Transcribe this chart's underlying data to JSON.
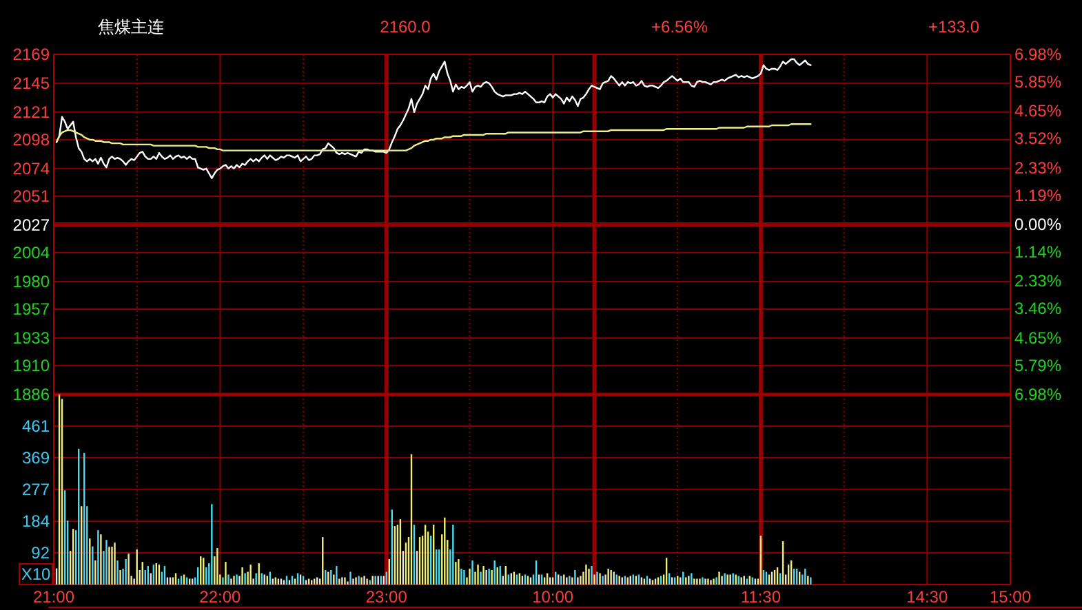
{
  "chart_data": [
    {
      "type": "line",
      "title": "焦煤主连",
      "annotations": [
        "2160.0",
        "+6.56%",
        "+133.0"
      ],
      "categories": [
        null,
        null,
        null,
        null,
        null,
        null,
        null,
        null,
        null,
        null,
        null,
        null,
        null,
        null,
        null,
        null,
        null,
        null,
        null,
        null,
        null,
        null,
        null,
        null,
        null,
        null,
        null,
        null,
        null,
        null,
        null,
        null,
        null,
        null,
        null,
        null,
        null,
        null,
        null,
        null,
        null,
        null,
        null,
        null,
        null,
        null,
        null,
        null,
        null,
        null,
        null,
        null,
        null,
        null,
        null,
        null,
        null,
        null,
        null,
        null,
        null,
        null,
        null,
        null,
        null,
        null,
        null,
        null,
        null,
        null,
        null,
        null,
        null,
        null,
        null,
        null,
        null,
        null,
        null,
        null,
        null,
        null,
        null,
        null,
        null,
        null,
        null,
        null,
        null,
        null,
        null,
        null,
        null,
        null,
        null,
        null,
        null,
        null,
        null,
        null,
        null,
        null,
        null,
        null,
        null,
        null,
        null,
        null,
        null,
        null,
        null,
        null,
        null,
        null,
        null,
        null,
        null,
        null,
        null,
        null,
        null,
        null,
        null,
        null,
        null,
        null,
        null,
        null,
        null,
        null,
        null,
        null,
        null,
        null,
        null,
        null,
        null,
        null,
        null,
        null,
        null,
        null,
        null,
        null,
        null,
        null,
        null,
        null,
        null,
        null,
        null,
        null,
        null,
        null,
        null,
        null,
        null,
        null,
        null,
        null,
        null,
        null,
        null,
        null,
        null,
        null,
        null,
        null,
        null,
        null,
        null,
        null,
        null,
        null,
        null,
        null,
        null,
        null,
        null,
        null,
        null,
        null,
        null,
        null,
        null,
        null,
        null,
        null,
        null,
        null,
        null,
        null,
        null,
        null,
        null,
        null,
        null,
        null,
        null,
        null,
        null,
        null,
        null,
        null,
        null,
        null,
        null,
        null,
        null,
        null,
        null,
        null,
        null,
        null,
        null,
        null,
        null,
        null,
        null,
        null,
        null,
        null,
        null,
        null,
        null,
        null,
        null,
        null,
        null,
        null,
        null,
        null,
        null,
        null,
        null,
        null,
        null,
        null,
        null,
        null,
        null,
        null,
        null,
        null,
        null,
        null,
        null,
        null,
        null,
        null,
        null,
        null,
        null,
        null,
        null,
        null,
        null,
        null,
        null,
        null,
        null,
        null,
        null,
        null,
        null,
        null,
        null,
        null,
        null,
        null,
        null,
        null,
        null,
        null,
        null,
        null,
        null,
        null,
        null,
        null,
        null,
        null,
        null,
        null,
        null,
        null,
        null,
        null,
        null,
        null,
        null,
        null,
        null,
        null,
        null,
        null,
        null,
        null,
        null,
        null,
        null,
        null,
        null,
        null,
        null,
        null,
        null,
        null,
        null,
        null,
        null,
        null,
        null,
        null,
        null,
        null,
        null,
        null,
        null,
        null,
        null,
        null,
        null,
        null,
        null,
        null,
        null,
        null,
        null,
        null,
        null,
        null,
        null,
        null,
        null,
        null,
        null,
        null,
        null,
        null,
        null,
        null,
        null,
        null,
        null,
        null
      ],
      "ylim": [
        1886,
        2169
      ],
      "yticks": [
        2169,
        2145,
        2121,
        2098,
        2074,
        2051,
        2027,
        2004,
        1980,
        1957,
        1933,
        1910,
        1886
      ],
      "y2lim": [
        -6.98,
        6.98
      ],
      "y2ticks": [
        {
          "value": 6.98,
          "label": "6.98%"
        },
        {
          "value": 5.85,
          "label": "5.85%"
        },
        {
          "value": 4.65,
          "label": "4.65%"
        },
        {
          "value": 3.52,
          "label": "3.52%"
        },
        {
          "value": 2.33,
          "label": "2.33%"
        },
        {
          "value": 1.19,
          "label": "1.19%"
        },
        {
          "value": 0,
          "label": "0.00%"
        },
        {
          "value": -1.14,
          "label": "1.14%"
        },
        {
          "value": -2.33,
          "label": "2.33%"
        },
        {
          "value": -3.46,
          "label": "3.46%"
        },
        {
          "value": -4.65,
          "label": "4.65%"
        },
        {
          "value": -5.79,
          "label": "5.79%"
        },
        {
          "value": -6.98,
          "label": "6.98%"
        }
      ],
      "series": [
        {
          "color": "#ffffff",
          "values": [
            null,
            2096,
            2101,
            2117,
            2113,
            2107,
            2110,
            2113,
            2100,
            2091,
            2088,
            2082,
            2080,
            2082,
            2080,
            2082,
            2078,
            2083,
            2078,
            2075,
            2082,
            2084,
            2082,
            2083,
            2082,
            2080,
            2077,
            2080,
            2082,
            2081,
            2084,
            2087,
            2088,
            2084,
            2082,
            2082,
            2084,
            2082,
            2087,
            2084,
            2082,
            2083,
            2085,
            2082,
            2084,
            2085,
            2083,
            2084,
            2082,
            2084,
            2082,
            2082,
            2075,
            2074,
            2073,
            2074,
            2070,
            2066,
            2070,
            2073,
            2074,
            2076,
            2077,
            2074,
            2076,
            2074,
            2077,
            2075,
            2078,
            2077,
            2080,
            2082,
            2080,
            2082,
            2080,
            2083,
            2085,
            2082,
            2085,
            2083,
            2081,
            2082,
            2084,
            2083,
            2085,
            2085,
            2084,
            2083,
            2085,
            2080,
            2082,
            2084,
            2081,
            2082,
            2085,
            2085,
            2086,
            2090,
            2091,
            2095,
            2093,
            2091,
            2087,
            2086,
            2087,
            2086,
            2087,
            2086,
            2085,
            2084,
            2088,
            2087,
            2090,
            2090,
            2089,
            2089,
            2088,
            2088,
            2088,
            2088,
            2087,
            2090,
            2096,
            2101,
            2107,
            2110,
            2114,
            2119,
            2124,
            2132,
            2121,
            2128,
            2132,
            2136,
            2143,
            2140,
            2149,
            2153,
            2148,
            2155,
            2159,
            2163,
            2153,
            2147,
            2138,
            2144,
            2140,
            2142,
            2141,
            2143,
            2146,
            2138,
            2142,
            2143,
            2142,
            2145,
            2146,
            2145,
            2142,
            2138,
            2136,
            2135,
            2134,
            2135,
            2135,
            2135,
            2136,
            2136,
            2137,
            2136,
            2138,
            2136,
            2134,
            2132,
            2129,
            2129,
            2130,
            2129,
            2134,
            2136,
            2133,
            2136,
            2134,
            2132,
            2128,
            2133,
            2130,
            2134,
            2131,
            2126,
            2132,
            2133,
            2136,
            2140,
            2143,
            2142,
            2141,
            2140,
            2145,
            2146,
            2147,
            2151,
            2149,
            2146,
            2143,
            2146,
            2143,
            2146,
            2145,
            2146,
            2143,
            2144,
            2147,
            2143,
            2142,
            2143,
            2143,
            2142,
            2141,
            2143,
            2146,
            2147,
            2149,
            2151,
            2149,
            2147,
            2149,
            2146,
            2146,
            2146,
            2143,
            2142,
            2146,
            2147,
            2146,
            2146,
            2145,
            2144,
            2146,
            2146,
            2147,
            2148,
            2147,
            2149,
            2150,
            2151,
            2152,
            2150,
            2151,
            2150,
            2151,
            2150,
            2149,
            2150,
            2151,
            2153,
            2160,
            2157,
            2156,
            2157,
            2157,
            2156,
            2159,
            2163,
            2161,
            2163,
            2165,
            2165,
            2162,
            2160,
            2162,
            2164,
            2161,
            2160,
            null,
            null,
            null,
            null,
            null,
            null,
            null,
            null,
            null,
            null,
            null,
            null,
            null,
            null,
            null,
            null,
            null,
            null,
            null,
            null,
            null,
            null,
            null,
            null,
            null,
            null,
            null,
            null,
            null,
            null,
            null,
            null,
            null,
            null,
            null,
            null,
            null,
            null,
            null,
            null,
            null,
            null,
            null,
            null,
            null,
            null,
            null,
            null,
            null,
            null,
            null,
            null,
            null,
            null,
            null,
            null,
            null,
            null,
            null,
            null,
            null,
            null,
            null,
            null,
            null,
            null,
            null,
            null,
            null,
            null,
            null,
            null
          ]
        },
        {
          "color": "#eeee88",
          "values": [
            null,
            2096,
            2101,
            2104,
            2105,
            2106,
            2106,
            2105,
            2104,
            2103,
            2102,
            2100,
            2099,
            2098,
            2098,
            2097,
            2097,
            2097,
            2096,
            2096,
            2096,
            2095,
            2095,
            2095,
            2095,
            2094,
            2094,
            2094,
            2094,
            2094,
            2094,
            2094,
            2094,
            2094,
            2094,
            2094,
            2093,
            2093,
            2093,
            2093,
            2093,
            2093,
            2093,
            2093,
            2093,
            2093,
            2093,
            2093,
            2093,
            2093,
            2093,
            2093,
            2092,
            2092,
            2092,
            2092,
            2091,
            2091,
            2091,
            2090,
            2090,
            2089,
            2089,
            2089,
            2089,
            2089,
            2089,
            2089,
            2089,
            2089,
            2089,
            2089,
            2089,
            2089,
            2089,
            2089,
            2089,
            2089,
            2089,
            2089,
            2089,
            2089,
            2089,
            2089,
            2089,
            2089,
            2089,
            2089,
            2089,
            2089,
            2089,
            2089,
            2089,
            2089,
            2089,
            2089,
            2089,
            2089,
            2089,
            2089,
            2089,
            2089,
            2089,
            2089,
            2089,
            2089,
            2089,
            2089,
            2089,
            2089,
            2089,
            2089,
            2089,
            2089,
            2089,
            2089,
            2089,
            2089,
            2089,
            2089,
            2089,
            2089,
            2089,
            2089,
            2089,
            2089,
            2089,
            2089,
            2090,
            2091,
            2093,
            2094,
            2095,
            2096,
            2097,
            2097,
            2098,
            2098,
            2099,
            2099,
            2099,
            2100,
            2100,
            2100,
            2101,
            2101,
            2101,
            2101,
            2102,
            2102,
            2102,
            2102,
            2102,
            2102,
            2102,
            2102,
            2103,
            2103,
            2103,
            2103,
            2103,
            2103,
            2103,
            2103,
            2104,
            2104,
            2104,
            2104,
            2104,
            2104,
            2104,
            2104,
            2104,
            2104,
            2104,
            2104,
            2104,
            2104,
            2104,
            2104,
            2104,
            2104,
            2104,
            2104,
            2104,
            2104,
            2104,
            2104,
            2104,
            2104,
            2104,
            2105,
            2105,
            2105,
            2105,
            2105,
            2105,
            2105,
            2105,
            2105,
            2105,
            2106,
            2106,
            2106,
            2106,
            2106,
            2106,
            2106,
            2106,
            2106,
            2106,
            2106,
            2106,
            2106,
            2106,
            2106,
            2106,
            2106,
            2106,
            2106,
            2106,
            2107,
            2107,
            2107,
            2107,
            2107,
            2107,
            2107,
            2107,
            2107,
            2107,
            2107,
            2107,
            2107,
            2107,
            2107,
            2107,
            2107,
            2107,
            2107,
            2108,
            2108,
            2108,
            2108,
            2108,
            2108,
            2108,
            2108,
            2108,
            2108,
            2109,
            2109,
            2109,
            2109,
            2109,
            2109,
            2109,
            2109,
            2109,
            2110,
            2110,
            2110,
            2110,
            2110,
            2110,
            2110,
            2111,
            2111,
            2111,
            2111,
            2111,
            2111,
            2111,
            2111,
            null,
            null,
            null,
            null,
            null,
            null,
            null,
            null,
            null,
            null,
            null,
            null,
            null,
            null,
            null,
            null,
            null,
            null,
            null,
            null,
            null,
            null,
            null,
            null,
            null,
            null,
            null,
            null,
            null,
            null,
            null,
            null,
            null,
            null,
            null,
            null,
            null,
            null,
            null,
            null,
            null,
            null,
            null,
            null,
            null,
            null,
            null,
            null,
            null,
            null,
            null,
            null,
            null,
            null,
            null,
            null,
            null,
            null,
            null,
            null,
            null,
            null,
            null,
            null,
            null,
            null,
            null,
            null,
            null,
            null,
            null,
            null
          ]
        }
      ],
      "grid": true
    },
    {
      "type": "bar",
      "ylabel": "X10",
      "categories": [
        "21:00",
        null,
        null,
        null,
        null,
        null,
        null,
        null,
        null,
        null,
        null,
        null,
        null,
        null,
        null,
        null,
        null,
        null,
        null,
        null,
        null,
        null,
        null,
        null,
        null,
        null,
        null,
        null,
        null,
        null,
        null,
        null,
        null,
        null,
        null,
        null,
        null,
        null,
        null,
        null,
        null,
        null,
        null,
        null,
        null,
        null,
        null,
        null,
        null,
        null,
        null,
        null,
        null,
        null,
        null,
        null,
        null,
        null,
        null,
        null,
        "22:00",
        null,
        null,
        null,
        null,
        null,
        null,
        null,
        null,
        null,
        null,
        null,
        null,
        null,
        null,
        null,
        null,
        null,
        null,
        null,
        null,
        null,
        null,
        null,
        null,
        null,
        null,
        null,
        null,
        null,
        null,
        null,
        null,
        null,
        null,
        null,
        null,
        null,
        null,
        null,
        null,
        null,
        null,
        null,
        null,
        null,
        null,
        null,
        null,
        null,
        null,
        null,
        null,
        null,
        null,
        null,
        null,
        null,
        null,
        null,
        "23:00",
        null,
        null,
        null,
        null,
        null,
        null,
        null,
        null,
        null,
        null,
        null,
        null,
        null,
        null,
        null,
        null,
        null,
        null,
        null,
        null,
        null,
        null,
        null,
        null,
        null,
        null,
        null,
        null,
        null,
        null,
        null,
        null,
        null,
        null,
        null,
        null,
        null,
        null,
        null,
        null,
        null,
        null,
        null,
        null,
        null,
        null,
        null,
        null,
        null,
        null,
        null,
        null,
        null,
        null,
        null,
        null,
        null,
        null,
        null,
        "10:00",
        null,
        null,
        null,
        null,
        null,
        null,
        null,
        null,
        null,
        null,
        null,
        null,
        null,
        null,
        null,
        null,
        null,
        null,
        null,
        null,
        null,
        null,
        null,
        null,
        null,
        null,
        null,
        null,
        null,
        null,
        null,
        null,
        null,
        null,
        null,
        null,
        null,
        null,
        null,
        null,
        null,
        null,
        null,
        null,
        null,
        null,
        null,
        null,
        null,
        null,
        null,
        null,
        null,
        null,
        null,
        null,
        null,
        null,
        null,
        null,
        null,
        null,
        null,
        null,
        null,
        null,
        null,
        null,
        null,
        null,
        null,
        null,
        null,
        null,
        "11:30",
        null,
        null,
        null,
        null,
        null,
        null,
        null,
        null,
        null,
        null,
        null,
        null,
        null,
        null,
        null,
        null,
        null,
        null,
        null,
        null,
        null,
        null,
        null,
        null,
        null,
        null,
        null,
        null,
        null,
        null,
        null,
        null,
        null,
        null,
        null,
        null,
        null,
        null,
        null,
        null,
        null,
        null,
        null,
        null,
        null,
        null,
        null,
        null,
        null,
        null,
        null,
        null,
        null,
        null,
        null,
        null,
        null,
        null,
        null,
        "14:30",
        null,
        null,
        null,
        null,
        null,
        null,
        null,
        null,
        null,
        null,
        null,
        null,
        null,
        null,
        null,
        null,
        null,
        null,
        null,
        null,
        null,
        null,
        null,
        null,
        null,
        null,
        null,
        null,
        null,
        "15:00"
      ],
      "ylim": [
        0,
        553
      ],
      "yticks": [
        92,
        184,
        277,
        369,
        461
      ],
      "values": [
        null,
        47,
        553,
        540,
        274,
        186,
        98,
        162,
        158,
        395,
        228,
        383,
        228,
        134,
        111,
        70,
        158,
        146,
        98,
        130,
        110,
        110,
        122,
        70,
        42,
        46,
        74,
        90,
        25,
        17,
        102,
        42,
        66,
        42,
        54,
        33,
        58,
        62,
        58,
        37,
        54,
        21,
        21,
        21,
        33,
        17,
        25,
        29,
        21,
        17,
        17,
        21,
        50,
        82,
        78,
        50,
        62,
        234,
        82,
        106,
        29,
        21,
        66,
        29,
        17,
        25,
        29,
        25,
        50,
        33,
        37,
        58,
        17,
        33,
        62,
        33,
        29,
        25,
        37,
        17,
        21,
        17,
        17,
        13,
        25,
        13,
        25,
        17,
        33,
        29,
        25,
        13,
        17,
        13,
        17,
        21,
        17,
        138,
        42,
        37,
        42,
        29,
        54,
        17,
        21,
        21,
        9,
        37,
        17,
        21,
        25,
        21,
        25,
        17,
        13,
        25,
        25,
        25,
        25,
        25,
        37,
        74,
        218,
        170,
        174,
        190,
        98,
        122,
        138,
        379,
        174,
        98,
        138,
        142,
        174,
        154,
        142,
        174,
        102,
        102,
        146,
        195,
        130,
        102,
        174,
        66,
        74,
        46,
        42,
        21,
        46,
        70,
        37,
        58,
        37,
        54,
        42,
        46,
        42,
        70,
        50,
        54,
        25,
        54,
        29,
        33,
        37,
        29,
        33,
        25,
        29,
        25,
        21,
        29,
        70,
        29,
        29,
        21,
        33,
        21,
        21,
        37,
        29,
        25,
        29,
        21,
        25,
        21,
        42,
        21,
        25,
        37,
        58,
        46,
        54,
        29,
        37,
        33,
        25,
        29,
        46,
        42,
        37,
        29,
        25,
        21,
        25,
        21,
        25,
        29,
        25,
        29,
        21,
        17,
        25,
        17,
        13,
        17,
        21,
        25,
        29,
        78,
        33,
        21,
        21,
        25,
        21,
        37,
        21,
        25,
        33,
        17,
        17,
        17,
        21,
        17,
        17,
        13,
        17,
        21,
        37,
        25,
        33,
        29,
        29,
        33,
        29,
        25,
        21,
        25,
        17,
        25,
        21,
        17,
        17,
        142,
        42,
        37,
        29,
        37,
        42,
        50,
        33,
        126,
        29,
        58,
        70,
        46,
        46,
        37,
        29,
        46,
        25,
        21,
        null,
        null,
        null,
        null,
        null,
        null,
        null,
        null,
        null,
        null,
        null,
        null,
        null,
        null,
        null,
        null,
        null,
        null,
        null,
        null,
        null,
        null,
        null,
        null,
        null,
        null,
        null,
        null,
        null,
        null,
        null,
        null,
        null,
        null,
        null,
        null,
        null,
        null,
        null,
        null,
        null,
        null,
        null,
        null,
        null,
        null,
        null,
        null,
        null,
        null,
        null,
        null,
        null,
        null,
        null,
        null,
        null,
        null,
        null,
        null,
        null,
        null,
        null,
        null,
        null,
        null,
        null,
        null,
        null,
        null,
        null,
        null
      ],
      "colors": [
        null,
        "#e6e6e6",
        "#f0f07a",
        "#f0f07a",
        "#4adcf0",
        "#4adcf0",
        "#f0f07a",
        "#f0f07a",
        "#4adcf0",
        "#4adcf0",
        "#f0f07a",
        "#4adcf0",
        "#4adcf0",
        "#f0f07a",
        "#4adcf0",
        "#f0f07a",
        "#4adcf0",
        "#f0f07a",
        "#4adcf0",
        "#4adcf0",
        "#f0f07a",
        "#f0f07a",
        "#f0f07a",
        "#4adcf0",
        "#f0f07a",
        "#4adcf0",
        "#4adcf0",
        "#f0f07a",
        "#f0f07a",
        "#e6e6e6",
        "#f0f07a",
        "#f0f07a",
        "#f0f07a",
        "#4adcf0",
        "#4adcf0",
        "#e6e6e6",
        "#4adcf0",
        "#f0f07a",
        "#f0f07a",
        "#4adcf0",
        "#4adcf0",
        "#e6e6e6",
        "#e6e6e6",
        "#f0f07a",
        "#f0f07a",
        "#4adcf0",
        "#4adcf0",
        "#f0f07a",
        "#4adcf0",
        "#f0f07a",
        "#e6e6e6",
        "#4adcf0",
        "#4adcf0",
        "#f0f07a",
        "#f0f07a",
        "#4adcf0",
        "#4adcf0",
        "#4adcf0",
        "#f0f07a",
        "#f0f07a",
        "#f0f07a",
        "#4adcf0",
        "#f0f07a",
        "#4adcf0",
        "#e6e6e6",
        "#f0f07a",
        "#4adcf0",
        "#e6e6e6",
        "#f0f07a",
        "#4adcf0",
        "#f0f07a",
        "#f0f07a",
        "#e6e6e6",
        "#4adcf0",
        "#f0f07a",
        "#4adcf0",
        "#e6e6e6",
        "#f0f07a",
        "#4adcf0",
        "#e6e6e6",
        "#f0f07a",
        "#e6e6e6",
        "#e6e6e6",
        "#e6e6e6",
        "#4adcf0",
        "#e6e6e6",
        "#4adcf0",
        "#f0f07a",
        "#4adcf0",
        "#e6e6e6",
        "#4adcf0",
        "#e6e6e6",
        "#f0f07a",
        "#e6e6e6",
        "#f0f07a",
        "#e6e6e6",
        "#f0f07a",
        "#f0f07a",
        "#4adcf0",
        "#f0f07a",
        "#4adcf0",
        "#f0f07a",
        "#4adcf0",
        "#f0f07a",
        "#e6e6e6",
        "#f0f07a",
        "#e6e6e6",
        "#4adcf0",
        "#e6e6e6",
        "#f0f07a",
        "#4adcf0",
        "#f0f07a",
        "#e6e6e6",
        "#f0f07a",
        "#4adcf0",
        "#f0f07a",
        "#4adcf0",
        "#e6e6e6",
        "#4adcf0",
        "#e6e6e6",
        "#4adcf0",
        "#f0f07a",
        "#4adcf0",
        "#f0f07a",
        "#f0f07a",
        "#f0f07a",
        "#e6e6e6",
        "#f0f07a",
        "#f0f07a",
        "#f0f07a",
        "#4adcf0",
        "#e6e6e6",
        "#f0f07a",
        "#f0f07a",
        "#f0f07a",
        "#f0f07a",
        "#4adcf0",
        "#f0f07a",
        "#4adcf0",
        "#4adcf0",
        "#f0f07a",
        "#f0f07a",
        "#f0f07a",
        "#4adcf0",
        "#4adcf0",
        "#f0f07a",
        "#f0f07a",
        "#4adcf0",
        "#4adcf0",
        "#f0f07a",
        "#f0f07a",
        "#4adcf0",
        "#f0f07a",
        "#f0f07a",
        "#4adcf0",
        "#f0f07a",
        "#e6e6e6",
        "#4adcf0",
        "#f0f07a",
        "#4adcf0",
        "#f0f07a",
        "#4adcf0",
        "#e6e6e6",
        "#f0f07a",
        "#4adcf0",
        "#e6e6e6",
        "#f0f07a",
        "#4adcf0",
        "#f0f07a",
        "#e6e6e6",
        "#4adcf0",
        "#f0f07a",
        "#e6e6e6",
        "#4adcf0",
        "#4adcf0",
        "#e6e6e6",
        "#4adcf0",
        "#f0f07a",
        "#f0f07a",
        "#e6e6e6",
        "#f0f07a",
        "#4adcf0",
        "#e6e6e6",
        "#4adcf0",
        "#f0f07a",
        "#e6e6e6",
        "#4adcf0",
        "#f0f07a",
        "#4adcf0",
        "#e6e6e6",
        "#f0f07a",
        "#f0f07a",
        "#f0f07a",
        "#f0f07a",
        "#4adcf0",
        "#f0f07a",
        "#4adcf0",
        "#f0f07a",
        "#4adcf0",
        "#e6e6e6",
        "#f0f07a",
        "#f0f07a",
        "#e6e6e6",
        "#4adcf0",
        "#f0f07a",
        "#e6e6e6",
        "#4adcf0",
        "#f0f07a",
        "#e6e6e6",
        "#4adcf0",
        "#f0f07a",
        "#4adcf0",
        "#e6e6e6",
        "#f0f07a",
        "#4adcf0",
        "#e6e6e6",
        "#f0f07a",
        "#e6e6e6",
        "#f0f07a",
        "#4adcf0",
        "#f0f07a",
        "#f0f07a",
        "#4adcf0",
        "#e6e6e6",
        "#4adcf0",
        "#f0f07a",
        "#e6e6e6",
        "#4adcf0",
        "#f0f07a",
        "#e6e6e6",
        "#4adcf0",
        "#f0f07a",
        "#e6e6e6",
        "#f0f07a",
        "#4adcf0",
        "#e6e6e6",
        "#f0f07a",
        "#e6e6e6",
        "#f0f07a",
        "#4adcf0",
        "#f0f07a",
        "#e6e6e6",
        "#4adcf0",
        "#f0f07a",
        "#e6e6e6",
        "#4adcf0",
        "#f0f07a",
        "#4adcf0",
        "#f0f07a",
        "#e6e6e6",
        "#4adcf0",
        "#f0f07a",
        "#4adcf0",
        "#e6e6e6",
        "#f0f07a",
        "#f0f07a",
        "#4adcf0",
        "#4adcf0",
        "#f0f07a",
        "#e6e6e6",
        "#f0f07a",
        "#f0f07a",
        "#4adcf0",
        "#f0f07a",
        "#e6e6e6",
        "#f0f07a",
        "#f0f07a",
        "#4adcf0",
        "#4adcf0",
        "#f0f07a",
        "#4adcf0",
        "#4adcf0",
        "#f0f07a",
        "#4adcf0",
        null,
        null,
        null,
        null,
        null,
        null,
        null,
        null,
        null,
        null,
        null,
        null,
        null,
        null,
        null,
        null,
        null,
        null,
        null,
        null,
        null,
        null,
        null,
        null,
        null,
        null,
        null,
        null,
        null,
        null,
        null,
        null,
        null,
        null,
        null,
        null,
        null,
        null,
        null,
        null,
        null,
        null,
        null,
        null,
        null,
        null,
        null,
        null,
        null,
        null,
        null,
        null,
        null,
        null,
        null,
        null,
        null,
        null,
        null,
        null,
        null,
        null,
        null,
        null,
        null,
        null,
        null,
        null,
        null,
        null,
        null,
        null
      ],
      "grid": true
    }
  ]
}
